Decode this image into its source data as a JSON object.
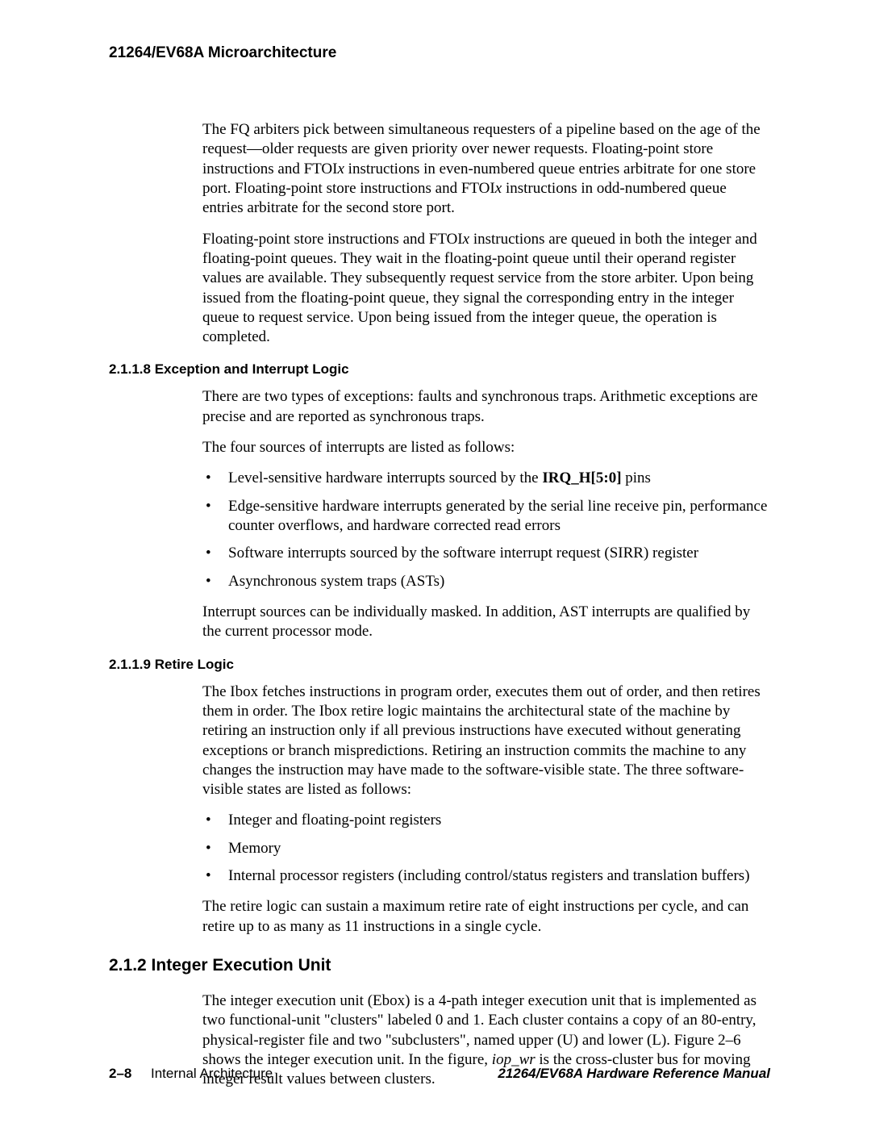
{
  "header": {
    "running_title": "21264/EV68A Microarchitecture"
  },
  "content": {
    "intro_p1_pre": "The FQ arbiters pick between simultaneous requesters of a pipeline based on the age of the request—older requests are given priority over newer requests. Floating-point store instructions and FTOI",
    "intro_p1_it1": "x",
    "intro_p1_mid": " instructions in even-numbered queue entries arbitrate for one store port. Floating-point store instructions and FTOI",
    "intro_p1_it2": "x",
    "intro_p1_post": " instructions in odd-numbered queue entries arbitrate for the second store port.",
    "intro_p2_pre": "Floating-point store instructions and FTOI",
    "intro_p2_it1": "x",
    "intro_p2_post": " instructions are queued in both the integer and floating-point queues. They wait in the floating-point queue until their operand register values are available. They subsequently request service from the store arbiter. Upon being issued from the floating-point queue, they signal the corresponding entry in the integer queue to request service. Upon being issued from the integer queue, the operation is completed.",
    "s2118": {
      "heading": "2.1.1.8  Exception and Interrupt Logic",
      "p1": "There are two types of exceptions: faults and synchronous traps. Arithmetic exceptions are precise and are reported as synchronous traps.",
      "p2": "The four sources of interrupts are listed as follows:",
      "b1_pre": "Level-sensitive hardware interrupts sourced by the ",
      "b1_bold": "IRQ_H[5:0]",
      "b1_post": " pins",
      "b2": "Edge-sensitive hardware interrupts generated by the serial line receive pin, performance counter overflows, and hardware corrected read errors",
      "b3": "Software interrupts sourced by the software interrupt request (SIRR) register",
      "b4": "Asynchronous system traps (ASTs)",
      "p3": "Interrupt sources can be individually masked. In addition, AST interrupts are qualified by the current processor mode."
    },
    "s2119": {
      "heading": "2.1.1.9  Retire Logic",
      "p1": "The Ibox fetches instructions in program order, executes them out of order, and then retires them in order. The Ibox retire logic maintains the architectural state of the machine by retiring an instruction only if all previous instructions have executed without generating exceptions or branch mispredictions. Retiring an instruction commits the machine to any changes the instruction may have made to the software-visible state. The three software-visible states are listed as follows:",
      "b1": "Integer and floating-point registers",
      "b2": "Memory",
      "b3": "Internal processor registers (including control/status registers and translation buffers)",
      "p2": "The retire logic can sustain a maximum retire rate of eight instructions per cycle, and can retire up to as many as 11 instructions in a single cycle."
    },
    "s212": {
      "heading": "2.1.2  Integer Execution Unit",
      "p1_pre": "The integer execution unit (Ebox) is a 4-path integer execution unit that is implemented as two functional-unit \"clusters\"  labeled 0 and 1. Each cluster contains a copy of an 80-entry, physical-register file and two \"subclusters\", named upper (U) and lower (L). Figure 2–6 shows the integer execution unit. In the figure, ",
      "p1_it": "iop_wr",
      "p1_post": " is the cross-cluster bus for moving integer result values between clusters."
    }
  },
  "footer": {
    "page_num": "2–8",
    "section_name": "Internal Architecture",
    "manual_title": "21264/EV68A Hardware Reference Manual"
  }
}
